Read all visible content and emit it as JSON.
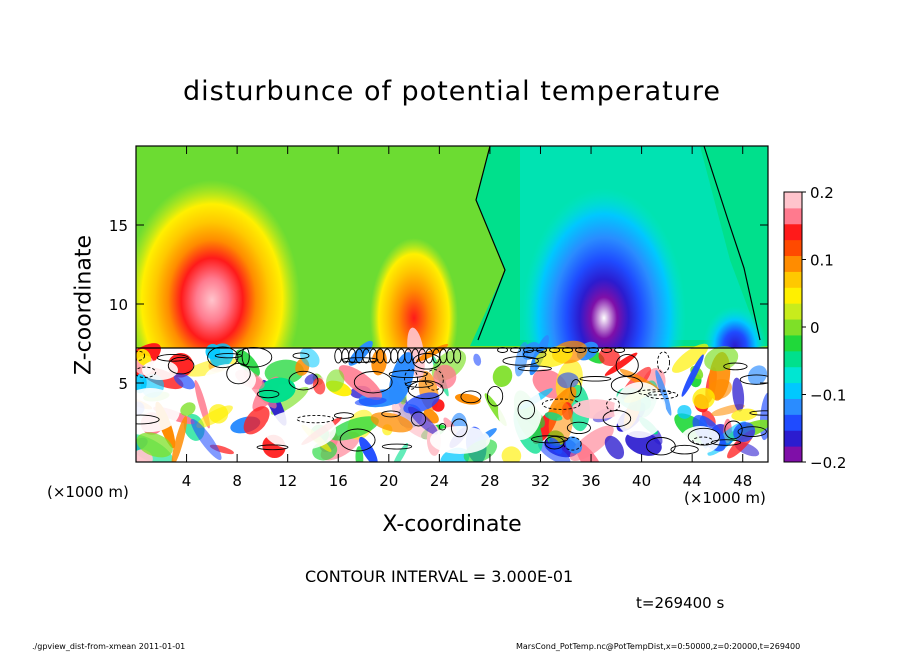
{
  "chart_data": {
    "type": "heatmap",
    "title": "disturbunce of potential temperature",
    "xlabel": "X-coordinate",
    "ylabel": "Z-coordinate",
    "x_unit_left": "(×1000 m)",
    "x_unit_right": "(×1000 m)",
    "xlim": [
      0,
      50
    ],
    "ylim": [
      0,
      20
    ],
    "x_ticks": [
      4,
      8,
      12,
      16,
      20,
      24,
      28,
      32,
      36,
      40,
      44,
      48
    ],
    "x_tick_labels": [
      "4",
      "8",
      "12",
      "16",
      "20",
      "24",
      "28",
      "32",
      "36",
      "40",
      "44",
      "48"
    ],
    "y_ticks": [
      5,
      10,
      15
    ],
    "y_tick_labels": [
      "5",
      "10",
      "15"
    ],
    "colorbar": {
      "range": [
        -0.2,
        0.2
      ],
      "ticks": [
        0.2,
        0.1,
        0,
        -0.1,
        -0.2
      ],
      "tick_labels": [
        "0.2",
        "0.1",
        "0",
        "−0.1",
        "−0.2"
      ],
      "colors": [
        "#7f0fa8",
        "#2b1ccf",
        "#1f4bff",
        "#2a8cff",
        "#00c8ff",
        "#00e6d2",
        "#00e08c",
        "#20d83a",
        "#7ee028",
        "#c8ec1c",
        "#fff000",
        "#ffc800",
        "#ff8c00",
        "#ff4a00",
        "#ff1a1a",
        "#ff7a8e",
        "#ffc4cc"
      ]
    },
    "features": [
      {
        "kind": "warm-anomaly",
        "x": 6,
        "z": 10,
        "value": 0.2
      },
      {
        "kind": "warm-anomaly",
        "x": 22,
        "z": 9.5,
        "value": 0.15
      },
      {
        "kind": "cold-anomaly",
        "x": 37,
        "z": 11,
        "value": -0.2
      },
      {
        "kind": "cold-anomaly",
        "x": 46,
        "z": 8,
        "value": -0.1
      },
      {
        "kind": "turbulent-layer",
        "z_top": 7.3
      }
    ],
    "contour_interval": "CONTOUR INTERVAL = 3.000E-01"
  },
  "annotations": {
    "time": "t=269400 s",
    "footer_left": "./gpview_dist-from-xmean  2011-01-01",
    "footer_right": "MarsCond_PotTemp.nc@PotTempDist,x=0:50000,z=0:20000,t=269400"
  }
}
